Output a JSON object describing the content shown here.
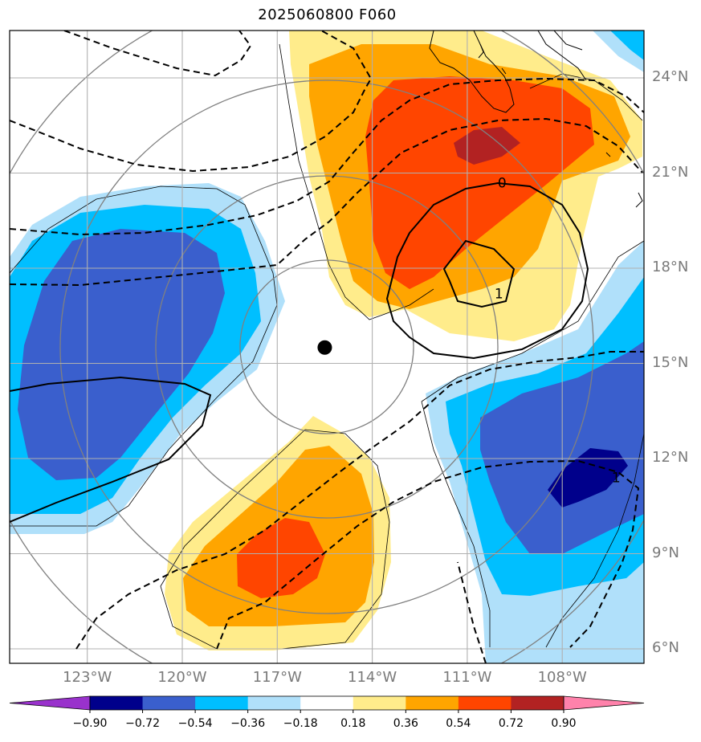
{
  "title": "2025060800 F060",
  "lat_labels": [
    {
      "text": "24°N",
      "lat": 24
    },
    {
      "text": "21°N",
      "lat": 21
    },
    {
      "text": "18°N",
      "lat": 18
    },
    {
      "text": "15°N",
      "lat": 15
    },
    {
      "text": "12°N",
      "lat": 12
    },
    {
      "text": "9°N",
      "lat": 9
    },
    {
      "text": "6°N",
      "lat": 6
    }
  ],
  "lon_labels": [
    {
      "text": "123°W",
      "lon": -123
    },
    {
      "text": "120°W",
      "lon": -120
    },
    {
      "text": "117°W",
      "lon": -117
    },
    {
      "text": "114°W",
      "lon": -114
    },
    {
      "text": "111°W",
      "lon": -111
    },
    {
      "text": "108°W",
      "lon": -108
    }
  ],
  "storm_center": {
    "lat": 15.5,
    "lon": -115.5
  },
  "contour_labels": [
    {
      "text": "0",
      "lat": 20.7,
      "lon": -109.9
    },
    {
      "text": "1",
      "lat": 17.2,
      "lon": -110.0
    },
    {
      "text": "1",
      "lat": 11.4,
      "lon": -106.3
    }
  ],
  "colorbar": {
    "labels": [
      "−0.90",
      "−0.72",
      "−0.54",
      "−0.36",
      "−0.18",
      "0.18",
      "0.36",
      "0.54",
      "0.72",
      "0.90"
    ],
    "colors": [
      "#9932cc",
      "#00008b",
      "#3a5fcd",
      "#00bfff",
      "#b0e0fa",
      "#ffffff",
      "#ffec8b",
      "#ffa500",
      "#ff4500",
      "#b22222",
      "#ff82ab"
    ]
  }
}
